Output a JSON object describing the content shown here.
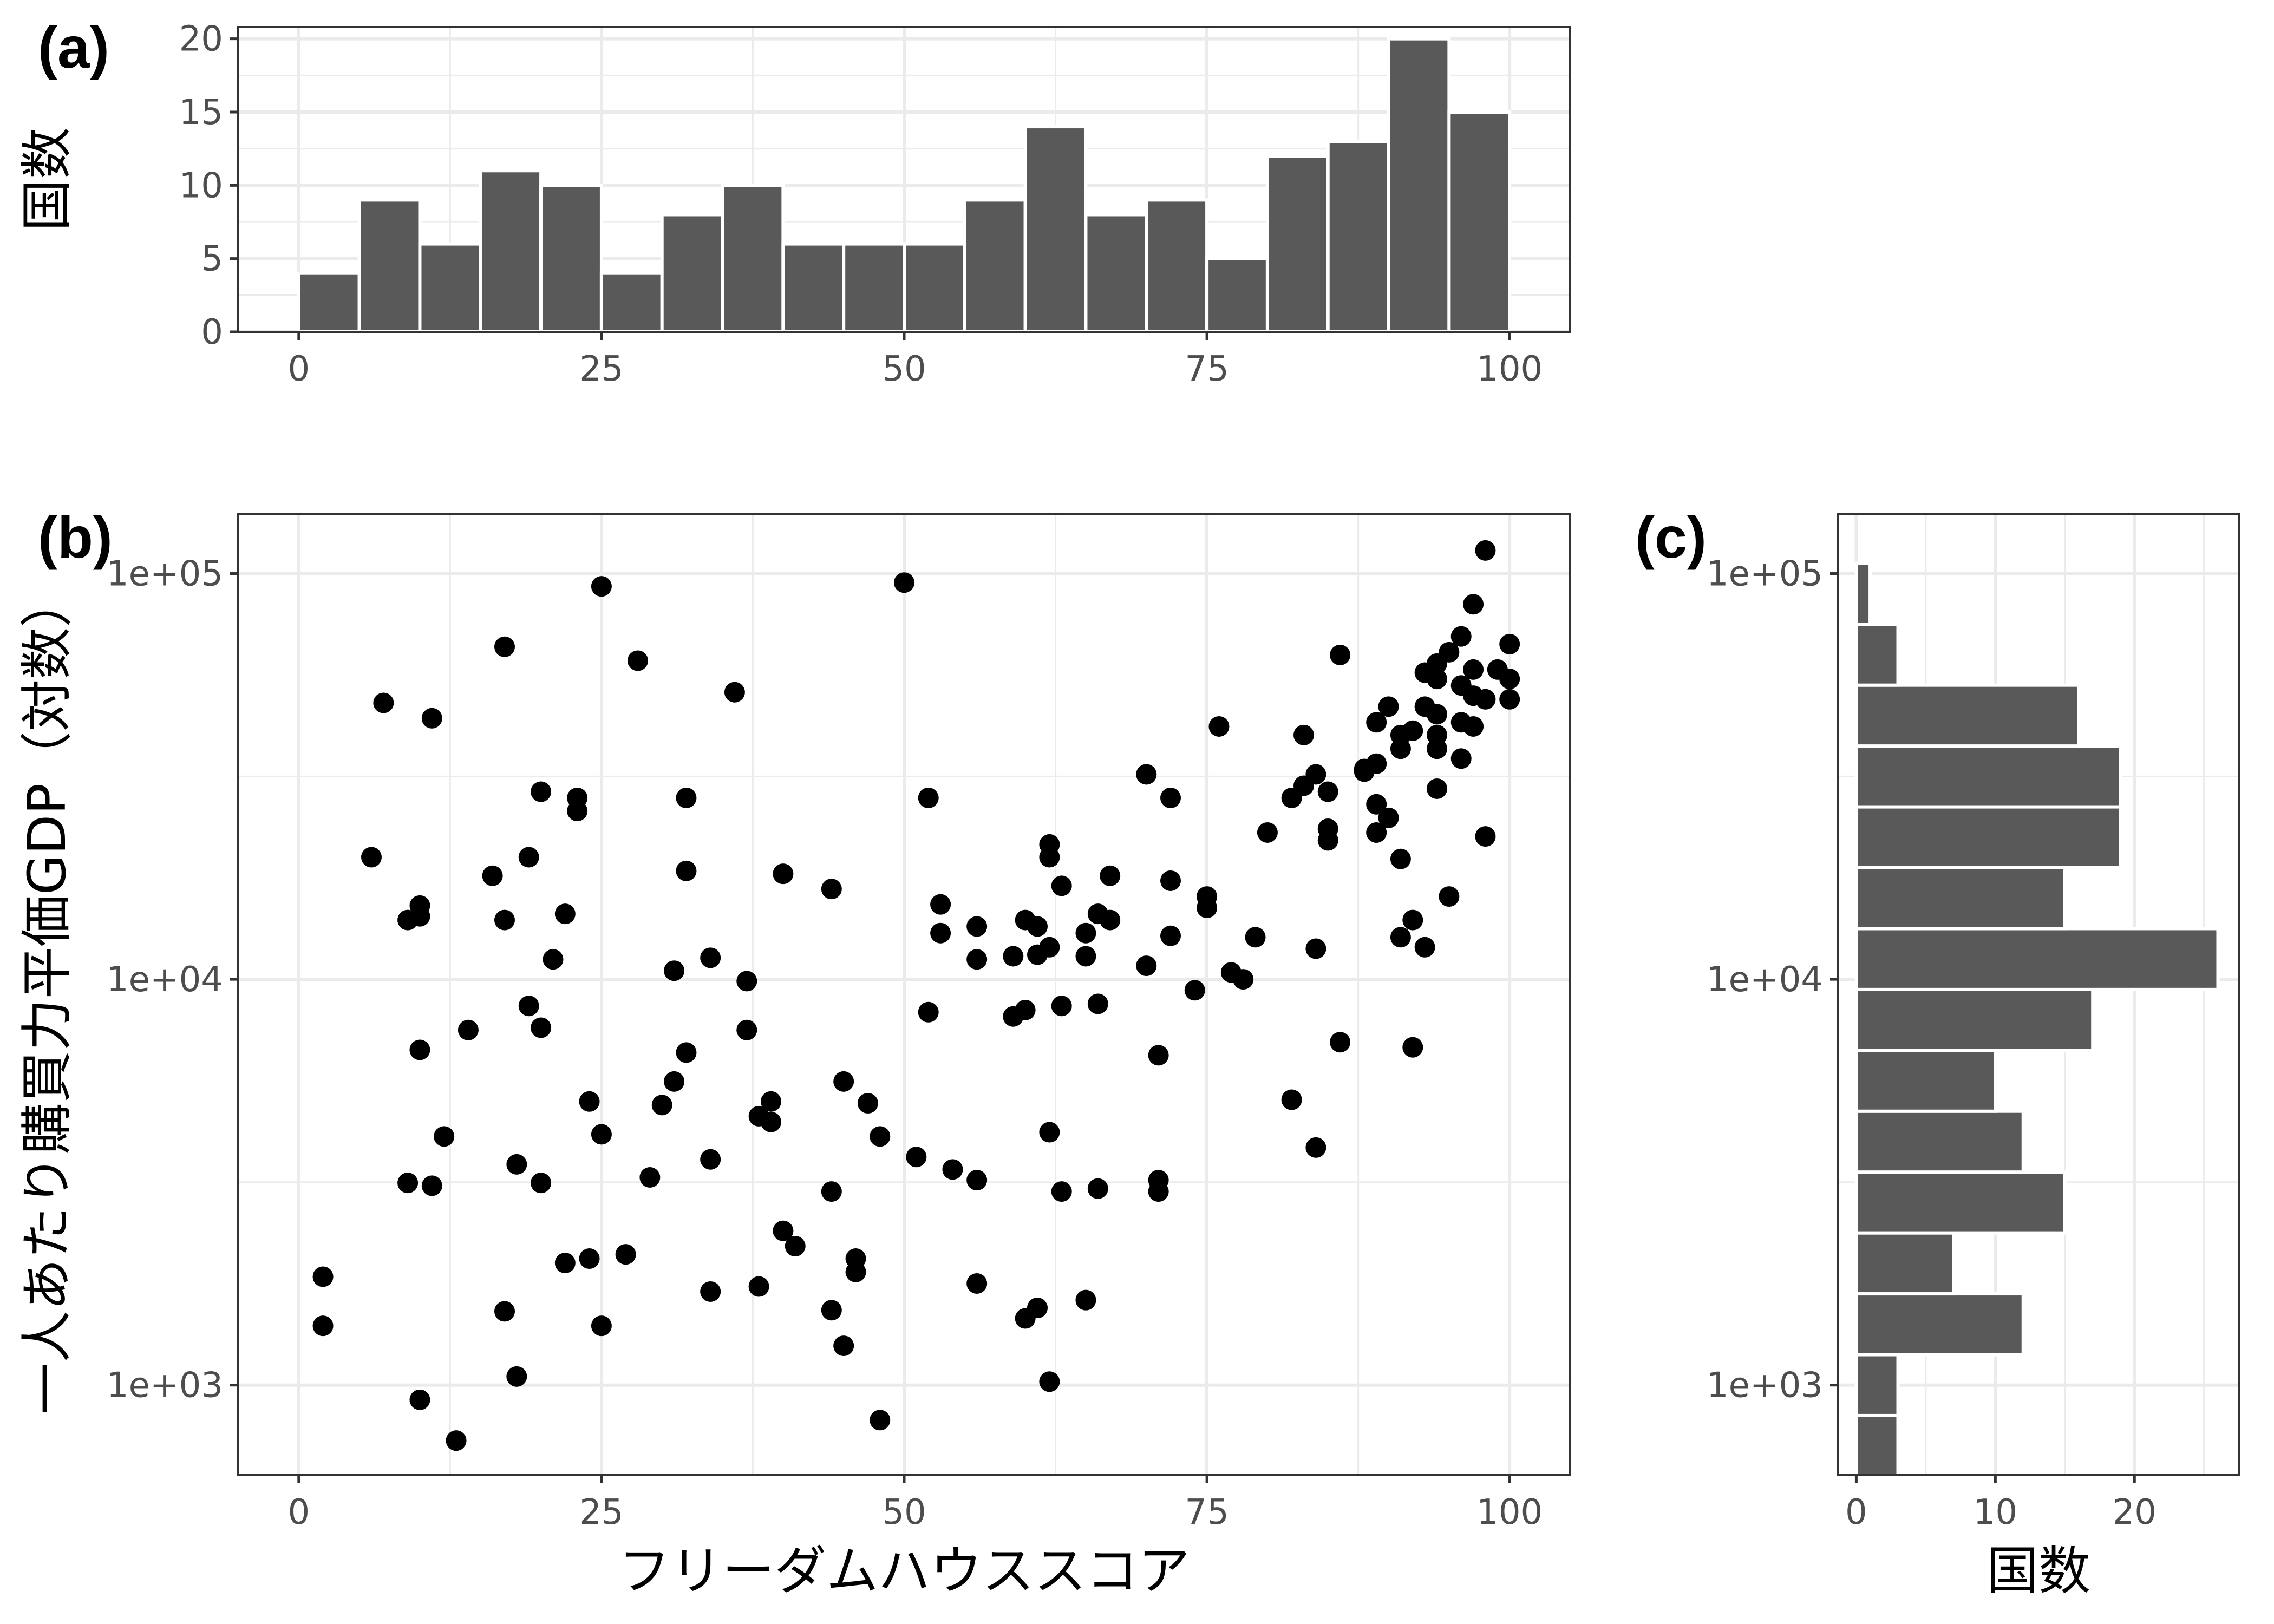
{
  "chart_data": [
    {
      "panel_label": "(a)",
      "type": "bar",
      "xlabel": "",
      "ylabel": "国数",
      "xlim": [
        -5,
        105
      ],
      "ylim": [
        0,
        20.8
      ],
      "xticks": [
        0,
        25,
        50,
        75,
        100
      ],
      "xtick_labels": [
        "0",
        "25",
        "50",
        "75",
        "100"
      ],
      "yticks": [
        0,
        5,
        10,
        15,
        20
      ],
      "ytick_labels": [
        "0",
        "5",
        "10",
        "15",
        "20"
      ],
      "grid": true,
      "bin_width": 5,
      "bins": [
        {
          "x": 2.5,
          "count": 4
        },
        {
          "x": 7.5,
          "count": 9
        },
        {
          "x": 12.5,
          "count": 6
        },
        {
          "x": 17.5,
          "count": 11
        },
        {
          "x": 22.5,
          "count": 10
        },
        {
          "x": 27.5,
          "count": 4
        },
        {
          "x": 32.5,
          "count": 8
        },
        {
          "x": 37.5,
          "count": 10
        },
        {
          "x": 42.5,
          "count": 6
        },
        {
          "x": 47.5,
          "count": 6
        },
        {
          "x": 52.5,
          "count": 6
        },
        {
          "x": 57.5,
          "count": 9
        },
        {
          "x": 62.5,
          "count": 14
        },
        {
          "x": 67.5,
          "count": 8
        },
        {
          "x": 72.5,
          "count": 9
        },
        {
          "x": 77.5,
          "count": 5
        },
        {
          "x": 82.5,
          "count": 12
        },
        {
          "x": 87.5,
          "count": 13
        },
        {
          "x": 92.5,
          "count": 20
        },
        {
          "x": 97.5,
          "count": 15
        }
      ]
    },
    {
      "panel_label": "(b)",
      "type": "scatter",
      "xlabel": "フリーダムハウススコア",
      "ylabel": "一人あたり購買力平価GDP（対数）",
      "xlim": [
        -5,
        105
      ],
      "ylim": [
        600,
        140000
      ],
      "y_scale": "log10",
      "xticks": [
        0,
        25,
        50,
        75,
        100
      ],
      "xtick_labels": [
        "0",
        "25",
        "50",
        "75",
        "100"
      ],
      "yticks": [
        1000,
        10000,
        100000
      ],
      "ytick_labels": [
        "1e+03",
        "1e+04",
        "1e+05"
      ],
      "grid": true,
      "points": [
        [
          2,
          1850
        ],
        [
          2,
          1400
        ],
        [
          6,
          20000
        ],
        [
          7,
          48000
        ],
        [
          9,
          14000
        ],
        [
          9,
          3150
        ],
        [
          10,
          15200
        ],
        [
          10,
          14300
        ],
        [
          10,
          6700
        ],
        [
          10,
          920
        ],
        [
          11,
          44000
        ],
        [
          11,
          3100
        ],
        [
          12,
          4100
        ],
        [
          13,
          730
        ],
        [
          14,
          7500
        ],
        [
          16,
          18000
        ],
        [
          17,
          66000
        ],
        [
          17,
          14000
        ],
        [
          17,
          1520
        ],
        [
          18,
          3500
        ],
        [
          18,
          1050
        ],
        [
          19,
          20000
        ],
        [
          19,
          8600
        ],
        [
          20,
          29000
        ],
        [
          20,
          7600
        ],
        [
          20,
          3150
        ],
        [
          21,
          11200
        ],
        [
          22,
          14500
        ],
        [
          22,
          2000
        ],
        [
          23,
          28000
        ],
        [
          23,
          26000
        ],
        [
          24,
          5000
        ],
        [
          24,
          2050
        ],
        [
          25,
          93000
        ],
        [
          25,
          4150
        ],
        [
          25,
          1400
        ],
        [
          27,
          2100
        ],
        [
          28,
          61000
        ],
        [
          29,
          3250
        ],
        [
          30,
          4900
        ],
        [
          31,
          10500
        ],
        [
          31,
          5600
        ],
        [
          32,
          28000
        ],
        [
          32,
          18500
        ],
        [
          32,
          6600
        ],
        [
          34,
          11300
        ],
        [
          34,
          3600
        ],
        [
          34,
          1700
        ],
        [
          36,
          51000
        ],
        [
          37,
          9900
        ],
        [
          37,
          7500
        ],
        [
          38,
          4600
        ],
        [
          38,
          1750
        ],
        [
          39,
          5000
        ],
        [
          39,
          4450
        ],
        [
          40,
          18200
        ],
        [
          40,
          2400
        ],
        [
          41,
          2200
        ],
        [
          44,
          16700
        ],
        [
          44,
          3000
        ],
        [
          44,
          1530
        ],
        [
          45,
          5600
        ],
        [
          45,
          1250
        ],
        [
          46,
          2050
        ],
        [
          46,
          1900
        ],
        [
          47,
          4950
        ],
        [
          48,
          4100
        ],
        [
          48,
          820
        ],
        [
          50,
          95000
        ],
        [
          51,
          3650
        ],
        [
          52,
          28000
        ],
        [
          52,
          8300
        ],
        [
          53,
          15300
        ],
        [
          53,
          13000
        ],
        [
          54,
          3400
        ],
        [
          56,
          13500
        ],
        [
          56,
          11200
        ],
        [
          56,
          3200
        ],
        [
          56,
          1780
        ],
        [
          59,
          11400
        ],
        [
          59,
          8100
        ],
        [
          60,
          14000
        ],
        [
          60,
          8400
        ],
        [
          60,
          1460
        ],
        [
          61,
          13500
        ],
        [
          61,
          11500
        ],
        [
          61,
          1550
        ],
        [
          62,
          21500
        ],
        [
          62,
          20000
        ],
        [
          62,
          12000
        ],
        [
          62,
          4200
        ],
        [
          62,
          1020
        ],
        [
          63,
          17000
        ],
        [
          63,
          8600
        ],
        [
          63,
          3000
        ],
        [
          65,
          13000
        ],
        [
          65,
          11400
        ],
        [
          65,
          1620
        ],
        [
          66,
          14500
        ],
        [
          66,
          8700
        ],
        [
          66,
          3050
        ],
        [
          67,
          18000
        ],
        [
          67,
          14000
        ],
        [
          70,
          32000
        ],
        [
          70,
          10800
        ],
        [
          71,
          6500
        ],
        [
          71,
          3200
        ],
        [
          71,
          3000
        ],
        [
          72,
          28000
        ],
        [
          72,
          17500
        ],
        [
          72,
          12800
        ],
        [
          74,
          9400
        ],
        [
          75,
          16000
        ],
        [
          75,
          15000
        ],
        [
          76,
          42000
        ],
        [
          77,
          10400
        ],
        [
          78,
          10000
        ],
        [
          79,
          12700
        ],
        [
          80,
          23000
        ],
        [
          82,
          28000
        ],
        [
          82,
          5050
        ],
        [
          83,
          40000
        ],
        [
          83,
          30000
        ],
        [
          84,
          32000
        ],
        [
          84,
          11900
        ],
        [
          84,
          3850
        ],
        [
          85,
          29000
        ],
        [
          85,
          23500
        ],
        [
          85,
          22000
        ],
        [
          86,
          63000
        ],
        [
          86,
          7000
        ],
        [
          88,
          33000
        ],
        [
          88,
          32500
        ],
        [
          89,
          43000
        ],
        [
          89,
          34000
        ],
        [
          89,
          27000
        ],
        [
          89,
          23000
        ],
        [
          90,
          47000
        ],
        [
          90,
          25000
        ],
        [
          91,
          40000
        ],
        [
          91,
          37000
        ],
        [
          91,
          19800
        ],
        [
          91,
          12700
        ],
        [
          92,
          41000
        ],
        [
          92,
          14000
        ],
        [
          92,
          6800
        ],
        [
          93,
          57000
        ],
        [
          93,
          47000
        ],
        [
          93,
          12000
        ],
        [
          94,
          60000
        ],
        [
          94,
          55000
        ],
        [
          94,
          45000
        ],
        [
          94,
          40000
        ],
        [
          94,
          37000
        ],
        [
          94,
          29500
        ],
        [
          95,
          64000
        ],
        [
          95,
          16000
        ],
        [
          96,
          70000
        ],
        [
          96,
          53000
        ],
        [
          96,
          43000
        ],
        [
          96,
          35000
        ],
        [
          97,
          84000
        ],
        [
          97,
          58000
        ],
        [
          97,
          50000
        ],
        [
          97,
          42000
        ],
        [
          98,
          114000
        ],
        [
          98,
          49000
        ],
        [
          98,
          22500
        ],
        [
          99,
          58000
        ],
        [
          100,
          67000
        ],
        [
          100,
          55000
        ],
        [
          100,
          49000
        ]
      ]
    },
    {
      "panel_label": "(c)",
      "type": "bar",
      "orientation": "horizontal",
      "xlabel": "国数",
      "ylabel": "",
      "xlim": [
        -1.3,
        27.5
      ],
      "ylim": [
        600,
        140000
      ],
      "y_scale": "log10",
      "xticks": [
        0,
        10,
        20
      ],
      "xtick_labels": [
        "0",
        "10",
        "20"
      ],
      "yticks": [
        1000,
        10000,
        100000
      ],
      "ytick_labels": [
        "1e+03",
        "1e+04",
        "1e+05"
      ],
      "grid": true,
      "bins": [
        {
          "log10_center": 2.85,
          "count": 3
        },
        {
          "log10_center": 3.0,
          "count": 3
        },
        {
          "log10_center": 3.15,
          "count": 12
        },
        {
          "log10_center": 3.3,
          "count": 7
        },
        {
          "log10_center": 3.45,
          "count": 15
        },
        {
          "log10_center": 3.6,
          "count": 12
        },
        {
          "log10_center": 3.75,
          "count": 10
        },
        {
          "log10_center": 3.9,
          "count": 17
        },
        {
          "log10_center": 4.05,
          "count": 26
        },
        {
          "log10_center": 4.2,
          "count": 15
        },
        {
          "log10_center": 4.35,
          "count": 19
        },
        {
          "log10_center": 4.5,
          "count": 19
        },
        {
          "log10_center": 4.65,
          "count": 16
        },
        {
          "log10_center": 4.8,
          "count": 3
        },
        {
          "log10_center": 4.95,
          "count": 1
        }
      ]
    }
  ]
}
